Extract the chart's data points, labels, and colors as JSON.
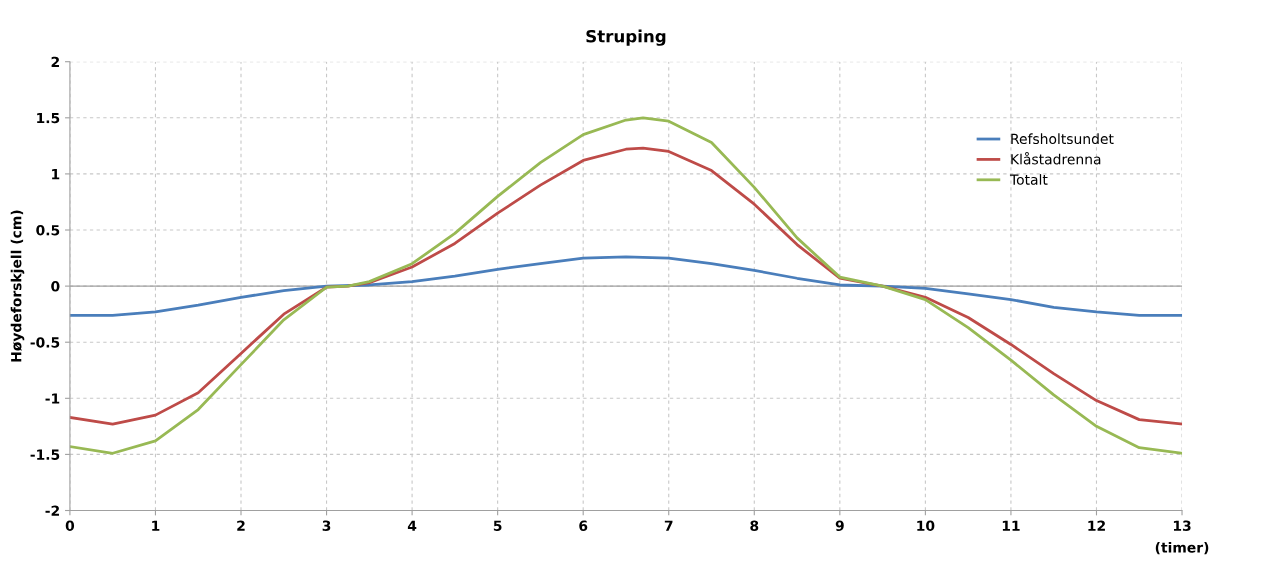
{
  "chart_data": {
    "type": "line",
    "title": "Struping",
    "xlabel": "(timer)",
    "ylabel": "Høydeforskjell (cm)",
    "xlim": [
      0,
      13
    ],
    "xticks": [
      0,
      1,
      2,
      3,
      4,
      5,
      6,
      7,
      8,
      9,
      10,
      11,
      12,
      13
    ],
    "ylim": [
      -2,
      2
    ],
    "yticks": [
      -2,
      -1.5,
      -1,
      -0.5,
      0,
      0.5,
      1,
      1.5,
      2
    ],
    "grid": true,
    "legend": "right",
    "marker": "none",
    "line_style": "solid",
    "series": [
      {
        "name": "Refsholtsundet",
        "color": "#4a7ebb",
        "x": [
          0,
          0.5,
          1,
          1.5,
          2,
          2.5,
          3,
          3.5,
          4,
          4.5,
          5,
          5.5,
          6,
          6.5,
          7,
          7.5,
          8,
          8.5,
          9,
          9.5,
          10,
          10.5,
          11,
          11.5,
          12,
          12.5,
          13
        ],
        "values": [
          -0.26,
          -0.26,
          -0.23,
          -0.17,
          -0.1,
          -0.04,
          0,
          0.01,
          0.04,
          0.09,
          0.15,
          0.2,
          0.25,
          0.26,
          0.25,
          0.2,
          0.14,
          0.07,
          0.01,
          0,
          -0.02,
          -0.07,
          -0.12,
          -0.19,
          -0.23,
          -0.26,
          -0.26
        ]
      },
      {
        "name": "Klåstadrenna",
        "color": "#be4b48",
        "x": [
          0,
          0.5,
          1,
          1.5,
          2,
          2.5,
          3,
          3.25,
          3.5,
          4,
          4.5,
          5,
          5.5,
          6,
          6.5,
          6.7,
          7,
          7.5,
          8,
          8.5,
          9,
          9.5,
          10,
          10.5,
          11,
          11.5,
          12,
          12.5,
          13
        ],
        "values": [
          -1.17,
          -1.23,
          -1.15,
          -0.95,
          -0.6,
          -0.25,
          -0.01,
          0,
          0.03,
          0.17,
          0.38,
          0.65,
          0.9,
          1.12,
          1.22,
          1.23,
          1.2,
          1.03,
          0.73,
          0.37,
          0.07,
          0,
          -0.1,
          -0.28,
          -0.52,
          -0.78,
          -1.02,
          -1.19,
          -1.23
        ]
      },
      {
        "name": "Totalt",
        "color": "#98b954",
        "x": [
          0,
          0.5,
          1,
          1.5,
          2,
          2.5,
          3,
          3.25,
          3.5,
          4,
          4.5,
          5,
          5.5,
          6,
          6.5,
          6.7,
          7,
          7.5,
          8,
          8.5,
          9,
          9.5,
          10,
          10.5,
          11,
          11.5,
          12,
          12.5,
          13
        ],
        "values": [
          -1.43,
          -1.49,
          -1.38,
          -1.1,
          -0.7,
          -0.3,
          -0.01,
          0,
          0.04,
          0.2,
          0.47,
          0.8,
          1.1,
          1.35,
          1.48,
          1.5,
          1.47,
          1.28,
          0.88,
          0.43,
          0.08,
          0,
          -0.12,
          -0.37,
          -0.66,
          -0.97,
          -1.25,
          -1.44,
          -1.49
        ]
      }
    ]
  }
}
